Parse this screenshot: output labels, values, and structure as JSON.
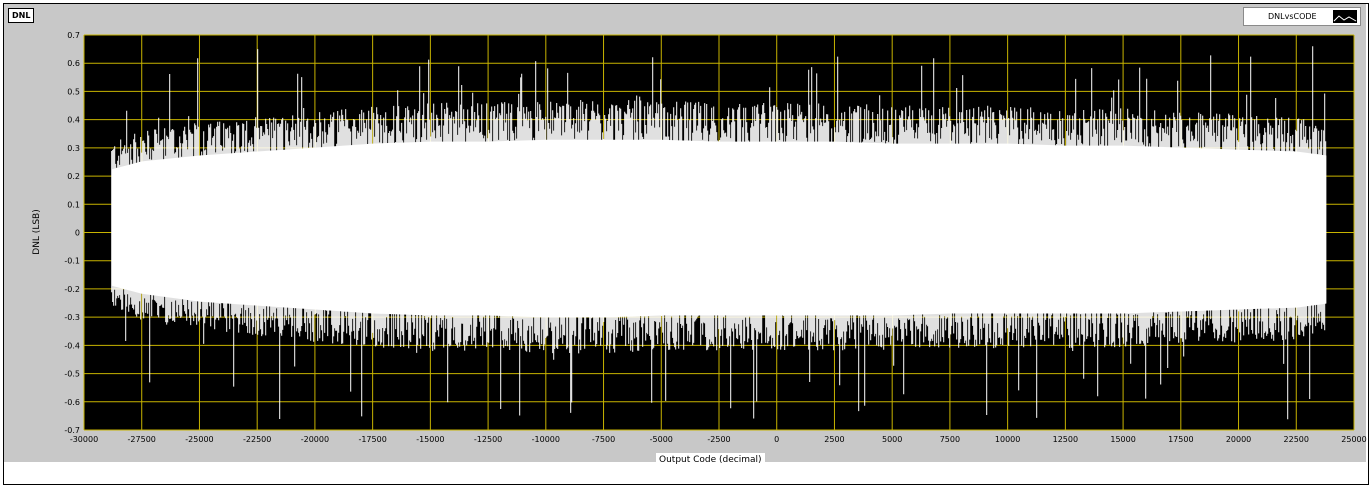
{
  "graph": {
    "title": "DNL",
    "legend_label": "DNLvsCODE"
  },
  "colors": {
    "plot_bg": "#000000",
    "grid": "#c8b400",
    "trace": "#ffffff",
    "panel": "#c8c8c8"
  },
  "chart_data": {
    "type": "line",
    "title": "DNL",
    "xlabel": "Output Code (decimal)",
    "ylabel": "DNL (LSB)",
    "xlim": [
      -30000,
      25000
    ],
    "ylim": [
      -0.7,
      0.7
    ],
    "x_ticks": [
      -30000,
      -27500,
      -25000,
      -22500,
      -20000,
      -17500,
      -15000,
      -12500,
      -10000,
      -7500,
      -5000,
      -2500,
      0,
      2500,
      5000,
      7500,
      10000,
      12500,
      15000,
      17500,
      20000,
      22500,
      25000
    ],
    "y_ticks": [
      0.7,
      0.6,
      0.5,
      0.4,
      0.3,
      0.2,
      0.1,
      0,
      -0.1,
      -0.2,
      -0.3,
      -0.4,
      -0.5,
      -0.6,
      -0.7
    ],
    "grid": true,
    "series": [
      {
        "name": "DNLvsCODE",
        "x_range": [
          -28800,
          23800
        ],
        "envelope_x": [
          -28800,
          -27500,
          -25000,
          -22500,
          -20000,
          -17500,
          -15000,
          -12500,
          -10000,
          -7500,
          -5000,
          -2500,
          0,
          2500,
          5000,
          7500,
          10000,
          12500,
          15000,
          17500,
          20000,
          22500,
          23800
        ],
        "envelope_upper": [
          0.32,
          0.36,
          0.39,
          0.41,
          0.43,
          0.45,
          0.46,
          0.46,
          0.47,
          0.47,
          0.47,
          0.46,
          0.46,
          0.46,
          0.45,
          0.45,
          0.45,
          0.44,
          0.44,
          0.43,
          0.42,
          0.41,
          0.39
        ],
        "envelope_lower": [
          -0.27,
          -0.31,
          -0.35,
          -0.37,
          -0.39,
          -0.41,
          -0.42,
          -0.42,
          -0.43,
          -0.43,
          -0.42,
          -0.42,
          -0.42,
          -0.42,
          -0.42,
          -0.41,
          -0.41,
          -0.41,
          -0.41,
          -0.4,
          -0.39,
          -0.38,
          -0.36
        ],
        "peak_max": 0.66,
        "peak_min": -0.67
      }
    ]
  }
}
